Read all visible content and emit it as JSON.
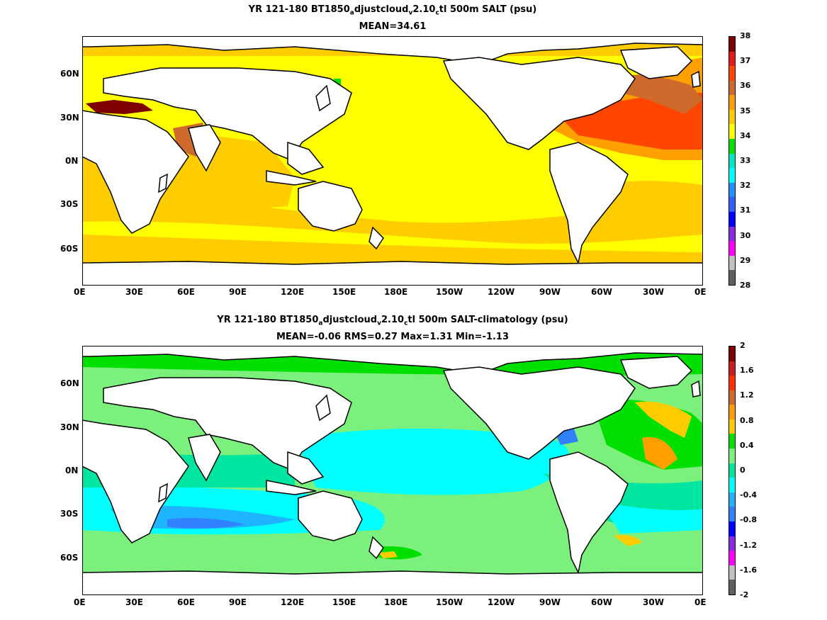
{
  "panels": [
    {
      "title_parts": [
        "YR 121-180 BT1850",
        "a",
        "djustcloud",
        "v",
        "2.10",
        "c",
        "tl 500m SALT (psu)"
      ],
      "subtitle": "MEAN=34.61",
      "lat_ticks": [
        "60N",
        "30N",
        "0N",
        "30S",
        "60S"
      ],
      "lon_ticks": [
        "0E",
        "30E",
        "60E",
        "90E",
        "120E",
        "150E",
        "180E",
        "150W",
        "120W",
        "90W",
        "60W",
        "30W",
        "0E"
      ],
      "colorbar": {
        "labels": [
          "38",
          "37",
          "36",
          "35",
          "34",
          "33",
          "32",
          "31",
          "30",
          "29",
          "28"
        ],
        "colors": [
          "#7f0000",
          "#e31a1c",
          "#ff4500",
          "#cd6a2c",
          "#ff9f00",
          "#ffcc00",
          "#ffff00",
          "#00e000",
          "#00e6c8",
          "#00ffff",
          "#1e90ff",
          "#3060ff",
          "#0000ff",
          "#8a2be2",
          "#ff00ff",
          "#c0c0c0",
          "#606060"
        ]
      }
    },
    {
      "title_parts": [
        "YR 121-180 BT1850",
        "a",
        "djustcloud",
        "v",
        "2.10",
        "c",
        "tl 500m SALT-climatology (psu)"
      ],
      "subtitle": "MEAN=-0.06   RMS=0.27   Max=1.31   Min=-1.13",
      "lat_ticks": [
        "60N",
        "30N",
        "0N",
        "30S",
        "60S"
      ],
      "lon_ticks": [
        "0E",
        "30E",
        "60E",
        "90E",
        "120E",
        "150E",
        "180E",
        "150W",
        "120W",
        "90W",
        "60W",
        "30W",
        "0E"
      ],
      "colorbar": {
        "labels": [
          "2",
          "1.6",
          "1.2",
          "0.8",
          "0.4",
          "0",
          "-0.4",
          "-0.8",
          "-1.2",
          "-1.6",
          "-2"
        ],
        "colors": [
          "#7f0000",
          "#c81e1e",
          "#ff3000",
          "#cd6a2c",
          "#ff9f00",
          "#ffcc00",
          "#00e000",
          "#7cf07c",
          "#00e6a0",
          "#00ffff",
          "#1eb4ff",
          "#3080ff",
          "#0000ff",
          "#8a2be2",
          "#ff00ff",
          "#c0c0c0",
          "#606060"
        ]
      }
    }
  ]
}
